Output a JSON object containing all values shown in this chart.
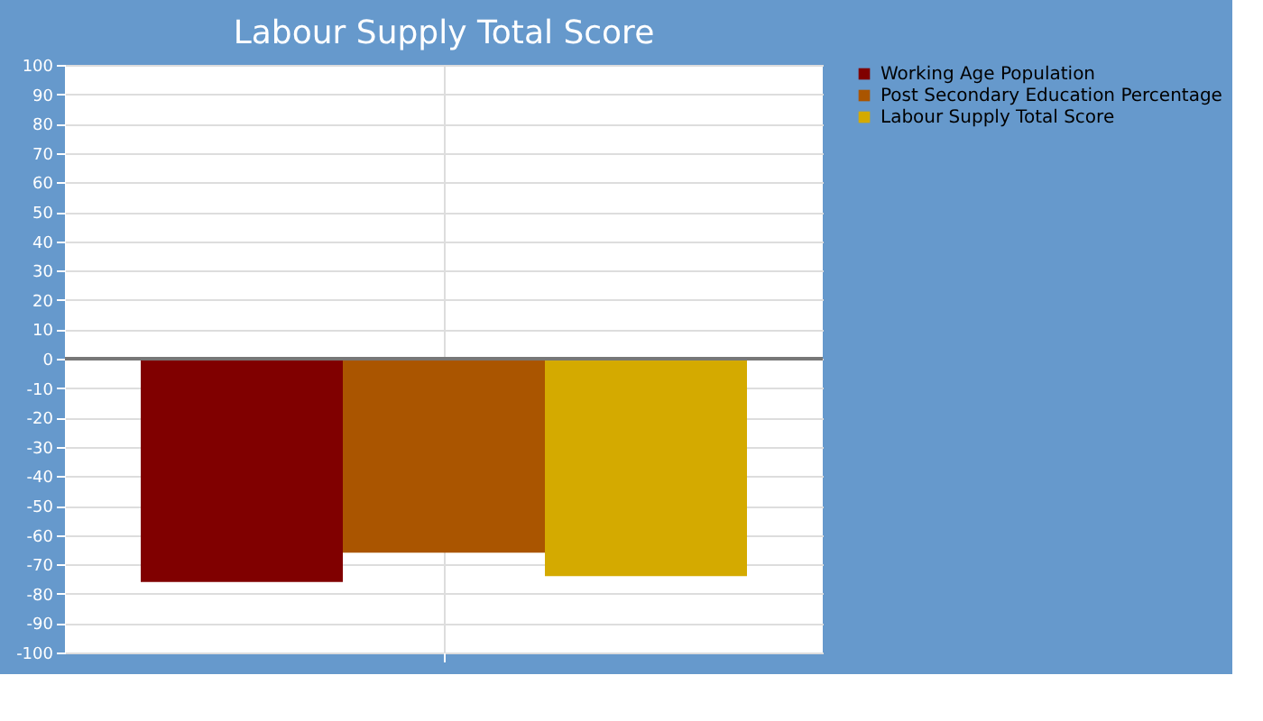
{
  "chart_data": {
    "type": "bar",
    "title": "Labour Supply Total Score",
    "categories": [
      null
    ],
    "series": [
      {
        "name": "Working Age Population",
        "color": "#800000",
        "values": [
          -76
        ]
      },
      {
        "name": "Post Secondary Education Percentage",
        "color": "#aa5500",
        "values": [
          -66
        ]
      },
      {
        "name": "Labour Supply Total Score",
        "color": "#d4aa00",
        "values": [
          -74
        ]
      }
    ],
    "ylim": [
      -100,
      100
    ],
    "yticks": [
      -100,
      -90,
      -80,
      -70,
      -60,
      -50,
      -40,
      -30,
      -20,
      -10,
      0,
      10,
      20,
      30,
      40,
      50,
      60,
      70,
      80,
      90,
      100
    ],
    "ref_lines": [
      {
        "axis": "y",
        "value": 0,
        "color": "#777777"
      }
    ],
    "grid": true,
    "legend": "top right"
  }
}
